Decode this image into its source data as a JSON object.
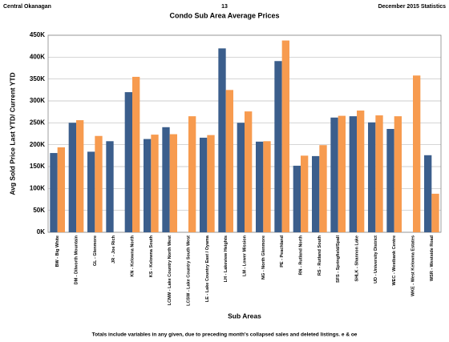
{
  "header": {
    "left": "Central Okanagan",
    "center": "13",
    "right": "December 2015 Statistics"
  },
  "chart_data": {
    "type": "bar",
    "title": "Condo Sub Area Average Prices",
    "y_label": "Avg Sold Price Last YTD/ Current YTD",
    "x_label": "Sub Areas",
    "categories": [
      "BW - Big White",
      "DM - Dilworth Mountain",
      "GL - Glenmore",
      "JR - Joe Rich",
      "KN - Kelowna North",
      "KS - Kelowna South",
      "LCNW - Lake Country North West",
      "LCSW - Lake Country South West",
      "LE - Lake Country East / Oyama",
      "LH - Lakeview Heights",
      "LM - Lower Mission",
      "NG - North Glenmore",
      "PE - Peachland",
      "RN - Rutland North",
      "RS - Rutland South",
      "SFS - Springfield/Spall",
      "SHLK - Shannon Lake",
      "UD - University District",
      "WEC - Westbank Centre",
      "WKE - West Kelowna Estates",
      "WSR - Westside Road"
    ],
    "series": [
      {
        "color": "#3b5e8c",
        "values": [
          181000,
          250000,
          184000,
          208000,
          320000,
          213000,
          240000,
          null,
          216000,
          420000,
          250000,
          207000,
          391000,
          152000,
          174000,
          262000,
          265000,
          251000,
          236000,
          null,
          176000
        ]
      },
      {
        "color": "#f79b4f",
        "values": [
          194000,
          256000,
          220000,
          null,
          355000,
          223000,
          224000,
          265000,
          222000,
          325000,
          276000,
          208000,
          438000,
          175000,
          199000,
          266000,
          278000,
          267000,
          265000,
          358000,
          88000
        ]
      }
    ],
    "ylim": [
      0,
      450000
    ],
    "yticks": [
      {
        "value": 0,
        "label": "0K"
      },
      {
        "value": 50000,
        "label": "50K"
      },
      {
        "value": 100000,
        "label": "100K"
      },
      {
        "value": 150000,
        "label": "150K"
      },
      {
        "value": 200000,
        "label": "200K"
      },
      {
        "value": 250000,
        "label": "250K"
      },
      {
        "value": 300000,
        "label": "300K"
      },
      {
        "value": 350000,
        "label": "350K"
      },
      {
        "value": 400000,
        "label": "400K"
      },
      {
        "value": 450000,
        "label": "450K"
      }
    ],
    "grid": true
  },
  "footer": "Totals include variables in any given, due to preceding month's collapsed sales and deleted listings. e & oe"
}
